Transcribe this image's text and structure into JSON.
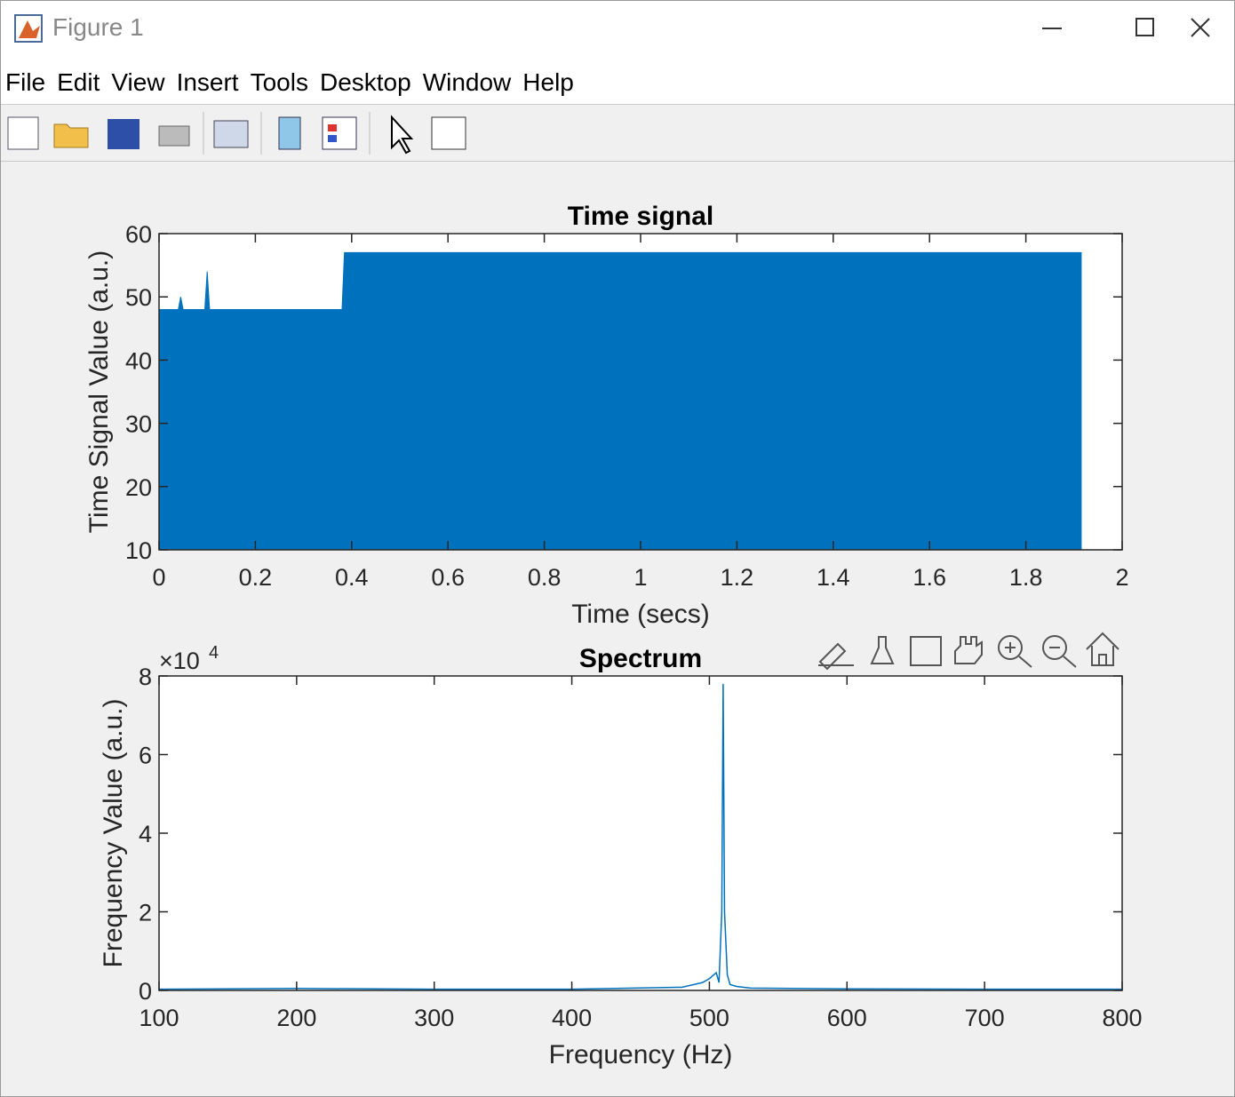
{
  "window": {
    "title": "Figure 1"
  },
  "menu": [
    "File",
    "Edit",
    "View",
    "Insert",
    "Tools",
    "Desktop",
    "Window",
    "Help"
  ],
  "chart_data": [
    {
      "type": "area",
      "title": "Time signal",
      "x_label": "Time (secs)",
      "y_label": "Time Signal Value (a.u.)",
      "x": [
        0,
        0.04,
        0.045,
        0.05,
        0.095,
        0.1,
        0.105,
        0.38,
        0.385,
        0.5,
        0.6,
        0.7,
        0.8,
        0.9,
        1.0,
        1.1,
        1.2,
        1.3,
        1.4,
        1.5,
        1.6,
        1.7,
        1.8,
        1.915
      ],
      "values": [
        48,
        48,
        50,
        48,
        48,
        54,
        48,
        48,
        57,
        57,
        57,
        57,
        57,
        57,
        57,
        57,
        57,
        57,
        57,
        57,
        57,
        57,
        57,
        57
      ],
      "color": "#0072bd",
      "xlim": [
        0,
        2
      ],
      "xticks": [
        0,
        0.2,
        0.4,
        0.6,
        0.8,
        1,
        1.2,
        1.4,
        1.6,
        1.8,
        2
      ],
      "ylim": [
        10,
        60
      ],
      "yticks": [
        10,
        20,
        30,
        40,
        50,
        60
      ]
    },
    {
      "type": "line",
      "title": "Spectrum",
      "x_label": "Frequency (Hz)",
      "y_label": "Frequency Value (a.u.)",
      "y_exponent": "×10",
      "y_exponent_power": "4",
      "x": [
        100,
        200,
        300,
        400,
        480,
        495,
        500,
        505,
        507,
        509,
        510,
        511,
        513,
        515,
        520,
        530,
        600,
        700,
        800
      ],
      "values": [
        300,
        500,
        300,
        300,
        800,
        2000,
        3000,
        4500,
        2000,
        20000,
        78000,
        20000,
        4000,
        1500,
        1000,
        600,
        400,
        300,
        300
      ],
      "color": "#0072bd",
      "xlim": [
        100,
        800
      ],
      "xticks": [
        100,
        200,
        300,
        400,
        500,
        600,
        700,
        800
      ],
      "ylim": [
        0,
        80000
      ],
      "yticks": [
        0,
        {
          "value": 20000,
          "label": "2"
        },
        {
          "value": 40000,
          "label": "4"
        },
        {
          "value": 60000,
          "label": "6"
        },
        {
          "value": 80000,
          "label": "8"
        }
      ]
    }
  ]
}
